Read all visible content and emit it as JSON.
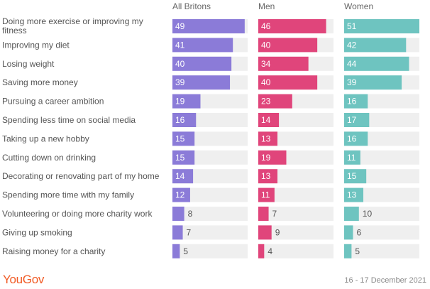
{
  "brand": {
    "logo_text": "YouGov",
    "color": "#f15a24"
  },
  "footer": {
    "date": "16 - 17 December 2021"
  },
  "chart_data": {
    "type": "bar",
    "orientation": "horizontal",
    "categories": [
      [
        "Doing more exercise or improving my",
        "fitness"
      ],
      [
        "Improving my diet"
      ],
      [
        "Losing weight"
      ],
      [
        "Saving more money"
      ],
      [
        "Pursuing a career ambition"
      ],
      [
        "Spending less time on social media"
      ],
      [
        "Taking up a new hobby"
      ],
      [
        "Cutting down on drinking"
      ],
      [
        "Decorating or renovating part of my home"
      ],
      [
        "Spending more time with my family"
      ],
      [
        "Volunteering or doing more charity work"
      ],
      [
        "Giving up smoking"
      ],
      [
        "Raising money for a charity"
      ]
    ],
    "series": [
      {
        "name": "All Britons",
        "color": "#8b7bd8",
        "values": [
          49,
          41,
          40,
          39,
          19,
          16,
          15,
          15,
          14,
          12,
          8,
          7,
          5
        ]
      },
      {
        "name": "Men",
        "color": "#e0457b",
        "values": [
          46,
          40,
          34,
          40,
          23,
          14,
          13,
          19,
          13,
          11,
          7,
          9,
          4
        ]
      },
      {
        "name": "Women",
        "color": "#6ec4c0",
        "values": [
          51,
          42,
          44,
          39,
          16,
          17,
          16,
          11,
          15,
          13,
          10,
          6,
          5
        ]
      }
    ],
    "xlim": [
      0,
      51
    ],
    "track_color": "#efefef",
    "grid": false,
    "legend": "column-headers"
  }
}
